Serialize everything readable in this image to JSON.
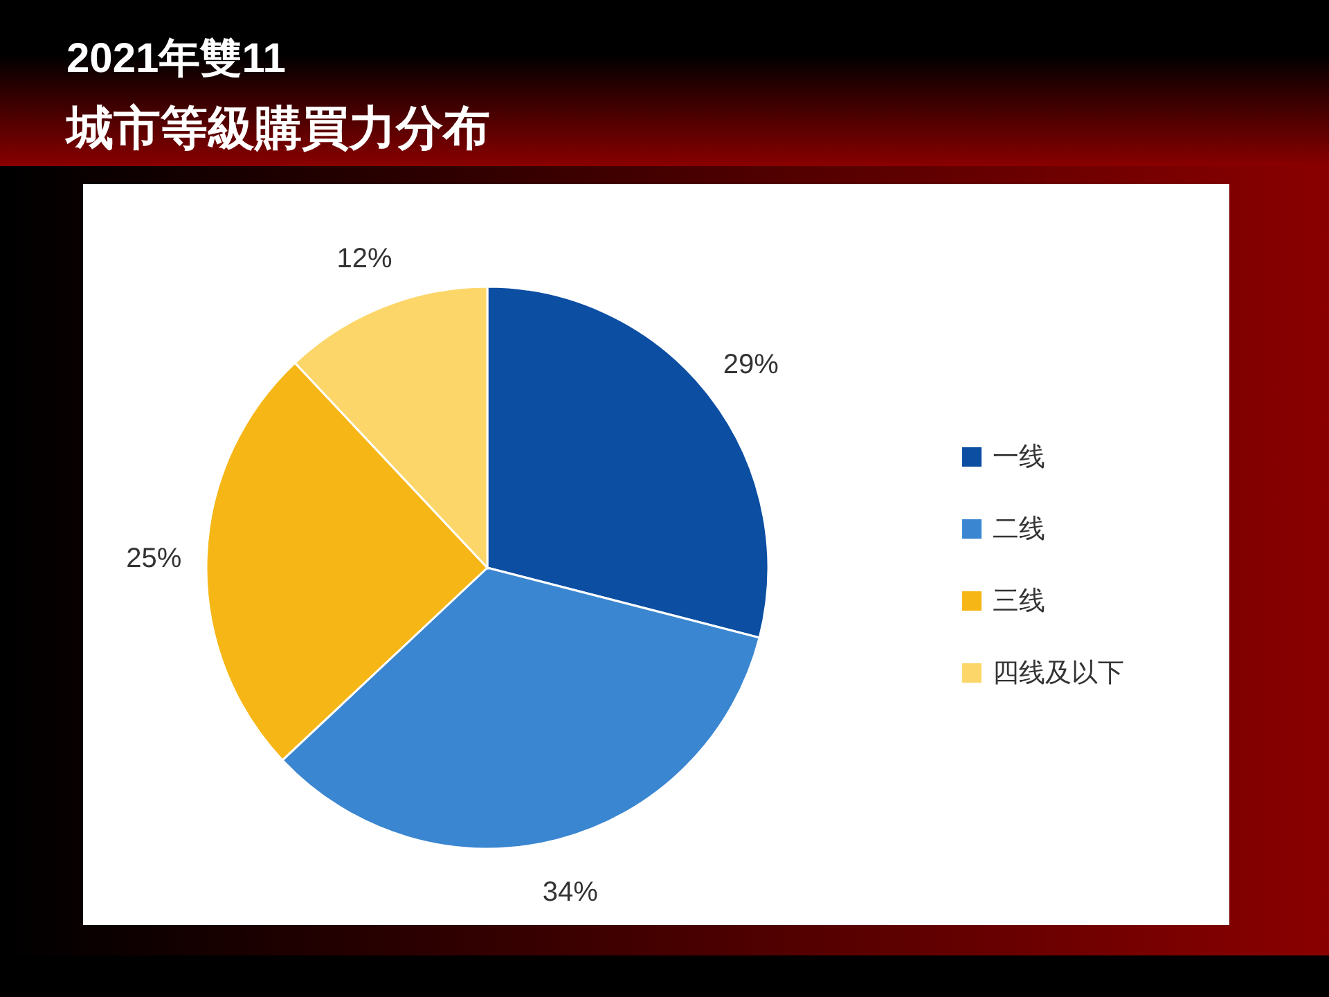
{
  "chart_data": {
    "type": "pie",
    "title": "2021年雙11",
    "subtitle": "城市等級購買力分布",
    "categories": [
      "一线",
      "二线",
      "三线",
      "四线及以下"
    ],
    "values": [
      29,
      34,
      25,
      12
    ],
    "colors": [
      "#0b4ea2",
      "#3a86d0",
      "#f6b616",
      "#fdd66a"
    ],
    "value_labels": [
      "29%",
      "34%",
      "25%",
      "12%"
    ],
    "legend": "right"
  }
}
